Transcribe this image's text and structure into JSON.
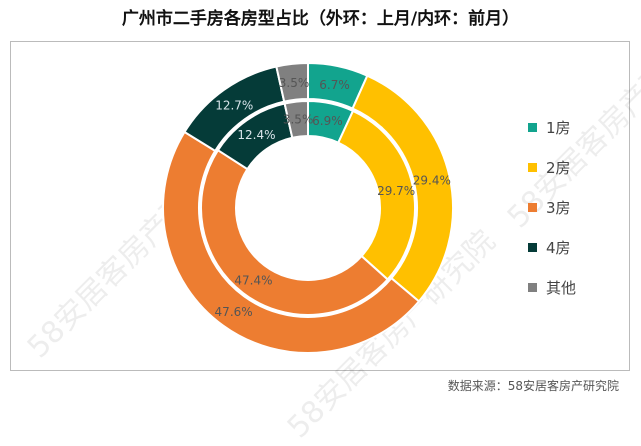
{
  "chart_data": {
    "type": "pie",
    "title": "广州市二手房各房型占比（外环：上月/内环：前月）",
    "categories": [
      "1房",
      "2房",
      "3房",
      "4房",
      "其他"
    ],
    "colors": [
      "#12a48e",
      "#ffc000",
      "#ed7d31",
      "#053b38",
      "#808080"
    ],
    "series": [
      {
        "name": "上月",
        "ring": "outer",
        "values": [
          6.7,
          29.4,
          47.6,
          12.7,
          3.5
        ],
        "labels": [
          "6.7%",
          "29.4%",
          "47.6%",
          "12.7%",
          "3.5%"
        ]
      },
      {
        "name": "前月",
        "ring": "inner",
        "values": [
          6.9,
          29.7,
          47.4,
          12.4,
          3.5
        ],
        "labels": [
          "6.9%",
          "29.7%",
          "47.4%",
          "12.4%",
          "3.5%"
        ]
      }
    ],
    "legend_position": "right"
  },
  "source": "数据来源：58安居客房产研究院",
  "watermark": "58安居客房产研究院"
}
